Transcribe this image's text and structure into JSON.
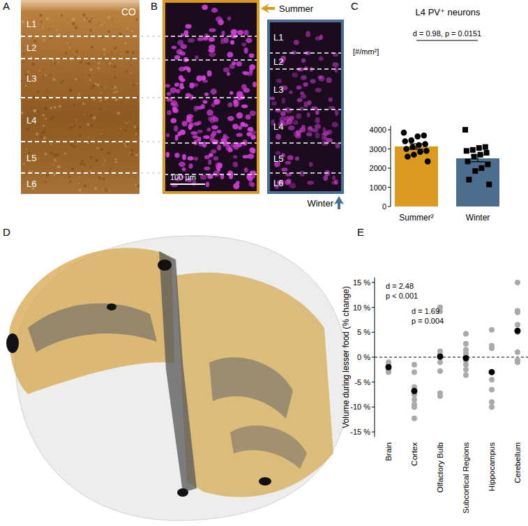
{
  "panels": {
    "letters": [
      "A",
      "B",
      "C",
      "D",
      "E"
    ],
    "A": {
      "stain": "CO",
      "layers": [
        "L1",
        "L2",
        "L3",
        "L4",
        "L5",
        "L6"
      ]
    },
    "B": {
      "summer_label": "Summer",
      "winter_label": "Winter",
      "layers": [
        "L1",
        "L2",
        "L3",
        "L4",
        "L5",
        "L6"
      ],
      "scale_bar": "100 µm"
    }
  },
  "chart_data": [
    {
      "type": "bar",
      "title": "L4 PV⁺ neurons",
      "y_label": "[#/mm²]",
      "categories": [
        "Summer²",
        "Winter"
      ],
      "values": [
        3130,
        2510
      ],
      "error": [
        140,
        180
      ],
      "colors": [
        "#d99a1f",
        "#4b6e8e"
      ],
      "points": [
        {
          "marker": "circle",
          "values": [
            3850,
            3700,
            3650,
            3450,
            3400,
            3250,
            3200,
            3100,
            3000,
            2900,
            2850,
            2700,
            2600,
            2350
          ]
        },
        {
          "marker": "square",
          "values": [
            4000,
            3100,
            3050,
            2950,
            2900,
            2800,
            2700,
            2600,
            2350,
            2200,
            2000,
            1850,
            1400,
            1150
          ]
        }
      ],
      "ylim": [
        0,
        4200
      ],
      "yticks": [
        0,
        1000,
        2000,
        3000,
        4000
      ],
      "annotations": [
        "d = 0.98, p = 0.0151"
      ]
    },
    {
      "type": "strip",
      "y_label": "Volume during lesser food (% change)",
      "categories": [
        "Brain",
        "Cortex",
        "Olfactory Bulb",
        "Subcortical Regions",
        "Hippocampus",
        "Cerebellum"
      ],
      "values": [
        -2.0,
        -6.8,
        0.1,
        -0.2,
        -3.0,
        5.3
      ],
      "color": "#000000",
      "points": {
        "color": "#aaaaaa",
        "values": [
          [
            -1.0,
            -1.2,
            -1.8,
            -2.3,
            -2.8,
            -3.0
          ],
          [
            -1.5,
            -3.0,
            -6.0,
            -7.5,
            -8.5,
            -9.5,
            -10.0,
            -12.3
          ],
          [
            10.0,
            9.2,
            1.2,
            0.5,
            -1.0,
            -2.8,
            -7.2,
            -7.8
          ],
          [
            4.7,
            2.7,
            1.5,
            0.8,
            0.2,
            -0.7,
            -1.5,
            -2.5,
            -3.6
          ],
          [
            5.5,
            2.3,
            1.8,
            -4.5,
            -6.5,
            -9.0,
            -10.0
          ],
          [
            15.0,
            9.3,
            9.0,
            6.5,
            5.0,
            1.0,
            -0.6,
            -1.0
          ]
        ]
      },
      "baseline": 0,
      "ylim": [
        -16,
        16
      ],
      "yticks": [
        {
          "value": -15,
          "label": "-15 %"
        },
        {
          "value": -10,
          "label": "-10 %"
        },
        {
          "value": -5,
          "label": "-5 %"
        },
        {
          "value": 0,
          "label": "0 %"
        },
        {
          "value": 5,
          "label": "5 %"
        },
        {
          "value": 10,
          "label": "10 %"
        },
        {
          "value": 15,
          "label": "15 %"
        }
      ],
      "annotations": [
        [
          "d = 2.48",
          "p < 0.001"
        ],
        [
          "d = 1.69",
          "p = 0.004"
        ]
      ]
    }
  ]
}
